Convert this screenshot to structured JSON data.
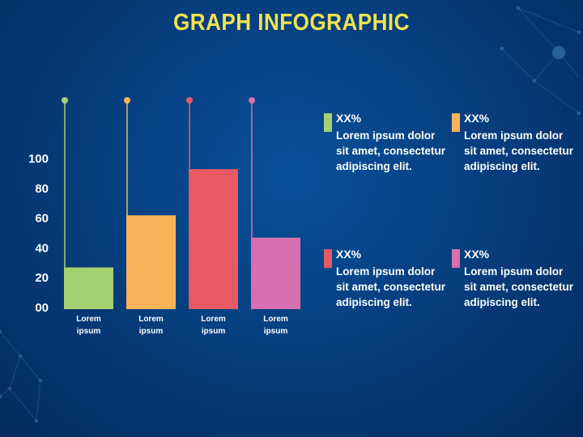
{
  "title": "GRAPH INFOGRAPHIC",
  "chart_data": {
    "type": "bar",
    "categories": [
      "Lorem ipsum",
      "Lorem ipsum",
      "Lorem ipsum",
      "Lorem ipsum"
    ],
    "values": [
      28,
      63,
      94,
      48
    ],
    "colors": [
      "#a6d170",
      "#fbb35b",
      "#e75a63",
      "#d86fae"
    ],
    "yticks": [
      "00",
      "20",
      "40",
      "60",
      "80",
      "100"
    ],
    "ylim": [
      0,
      100
    ],
    "grid": false,
    "legend_position": "right"
  },
  "legend": [
    {
      "value": "XX%",
      "text": "Lorem ipsum dolor sit amet, consectetur adipiscing elit.",
      "color": "#a6d170"
    },
    {
      "value": "XX%",
      "text": "Lorem ipsum dolor sit amet, consectetur adipiscing elit.",
      "color": "#fbb35b"
    },
    {
      "value": "XX%",
      "text": "Lorem ipsum dolor sit amet, consectetur adipiscing elit.",
      "color": "#e75a63"
    },
    {
      "value": "XX%",
      "text": "Lorem ipsum dolor sit amet, consectetur adipiscing elit.",
      "color": "#d86fae"
    }
  ]
}
